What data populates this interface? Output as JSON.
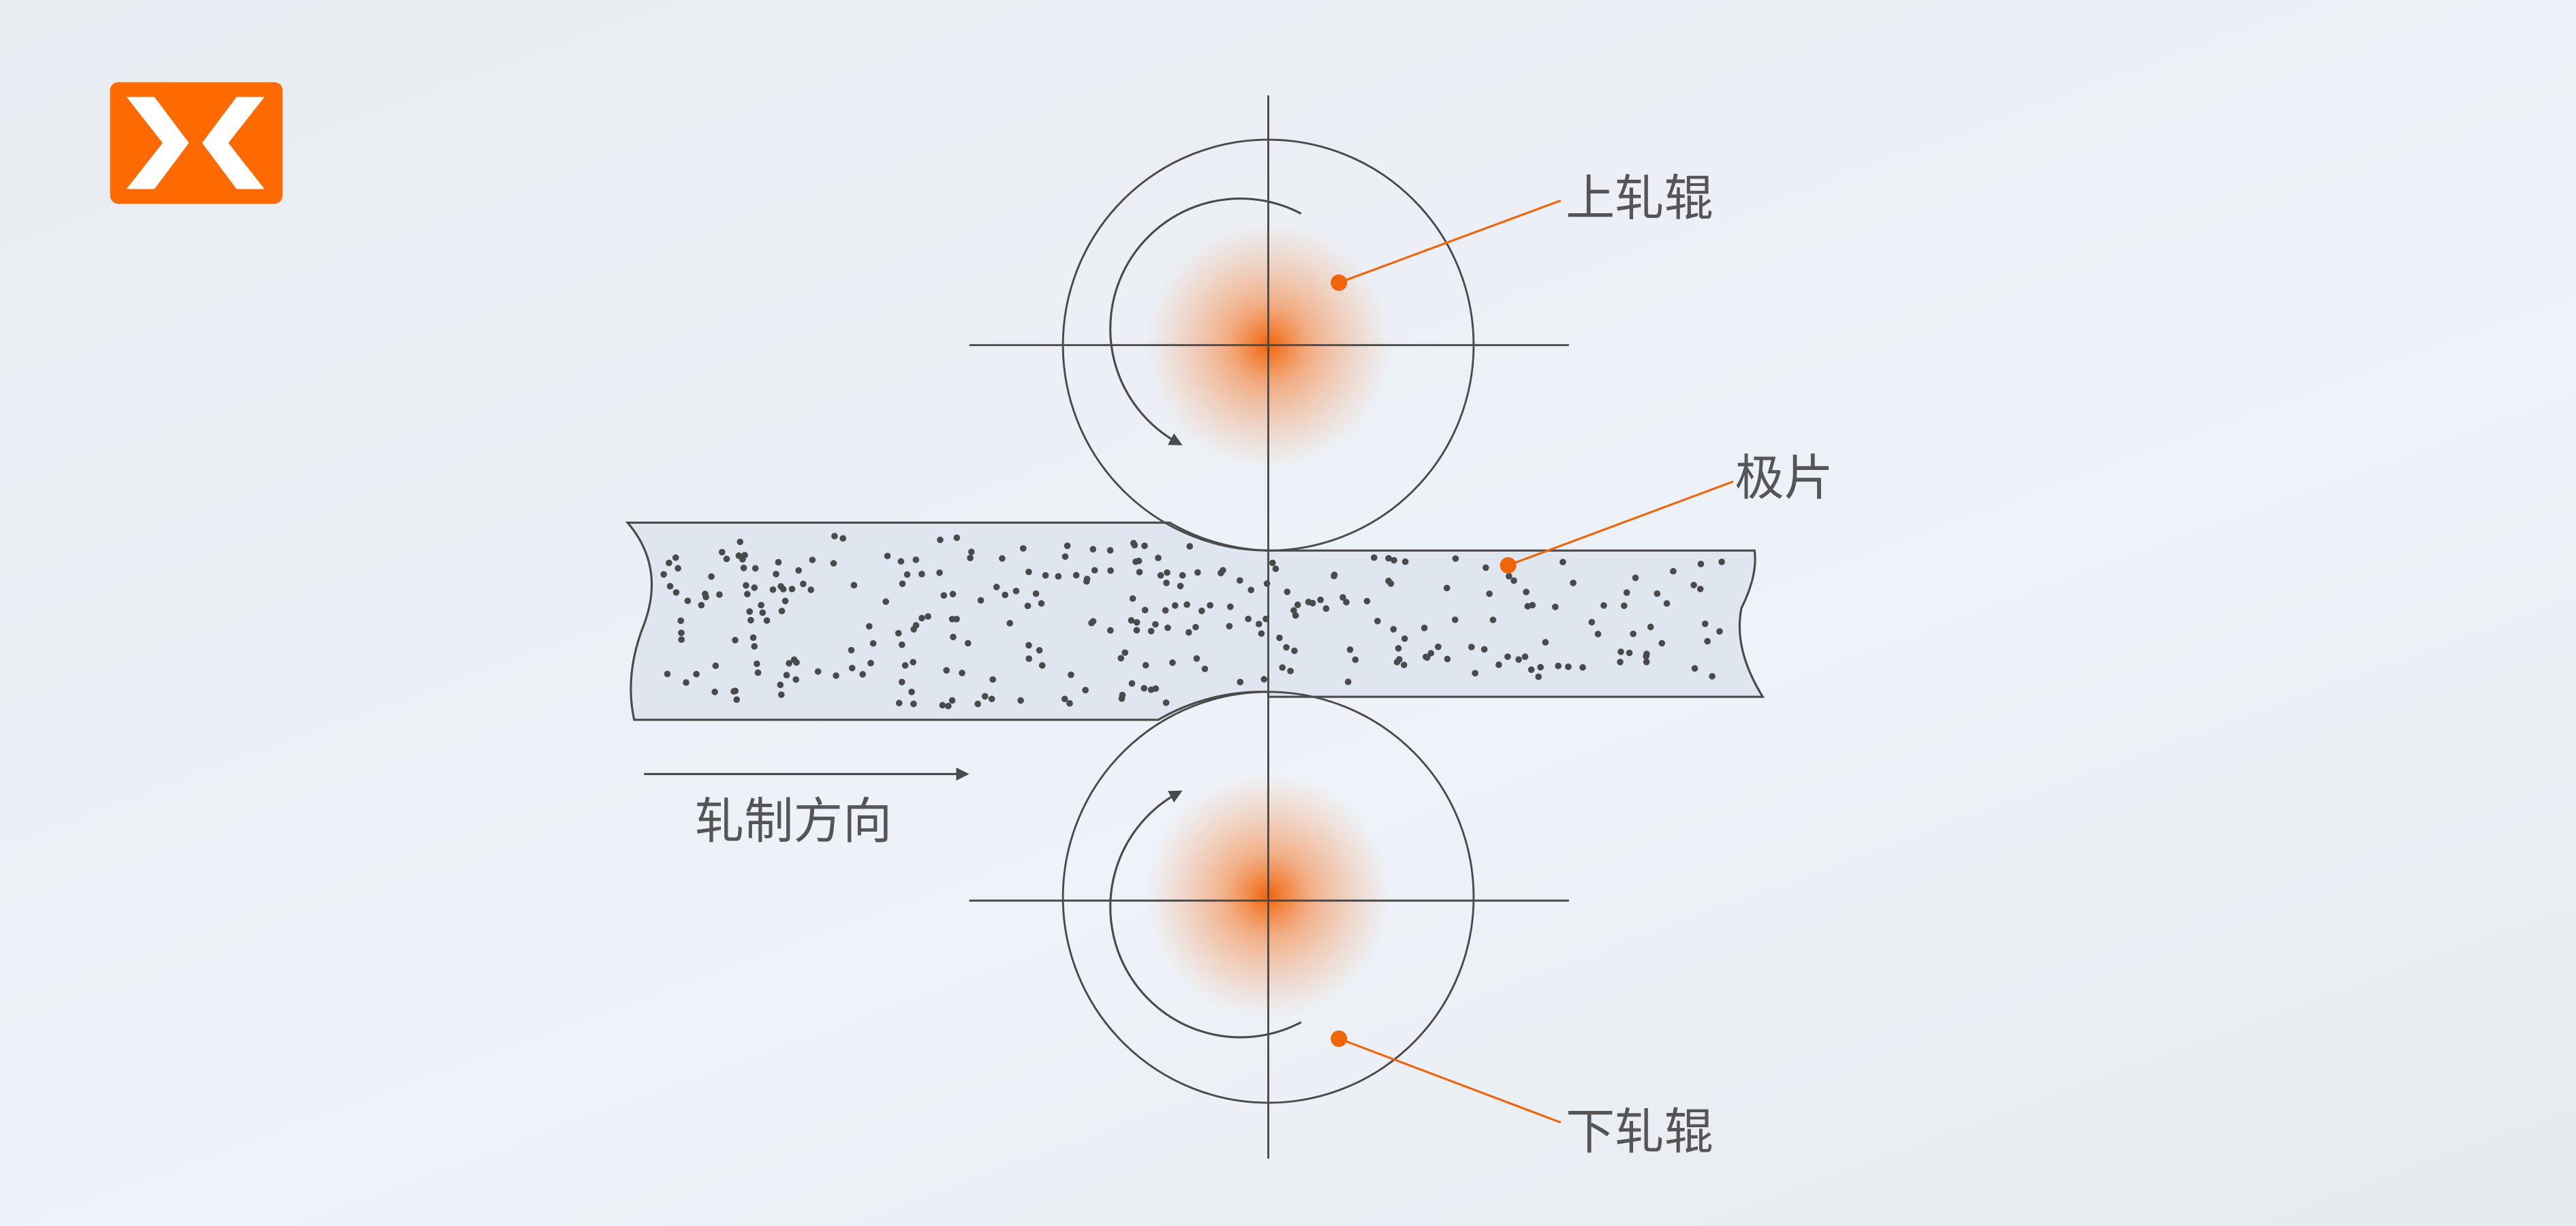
{
  "labels": {
    "upper_roll": "上轧辊",
    "electrode_sheet": "极片",
    "lower_roll": "下轧辊",
    "rolling_direction": "轧制方向"
  },
  "colors": {
    "accent": "#f0640a",
    "logo": "#ff6a00",
    "line": "#4a4a4a",
    "sheet_fill": "#e0e6ef"
  },
  "icons": [
    "logo-chevrons-icon",
    "rotation-arrow-icon",
    "direction-arrow-icon"
  ]
}
